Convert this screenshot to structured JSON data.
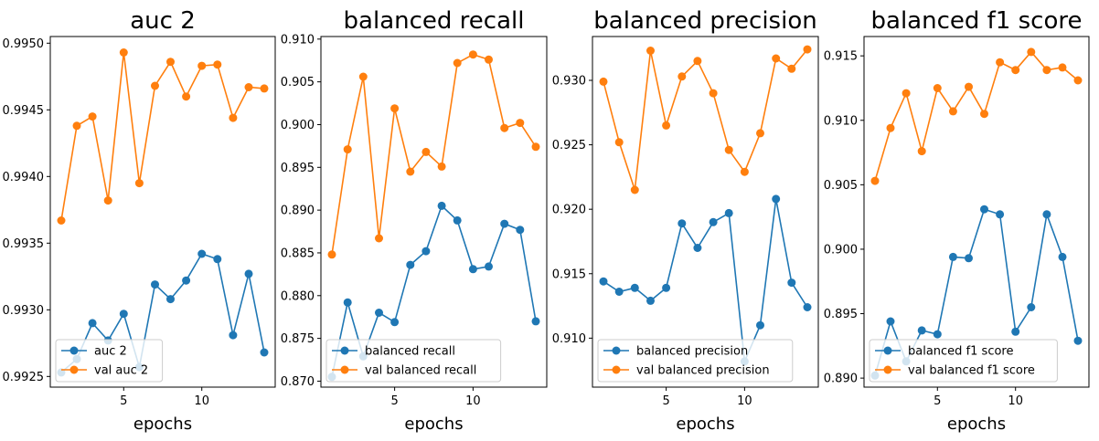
{
  "chart_data": [
    {
      "type": "line",
      "title": "auc 2",
      "xlabel": "epochs",
      "ylabel": "",
      "x": [
        1,
        2,
        3,
        4,
        5,
        6,
        7,
        8,
        9,
        10,
        11,
        12,
        13,
        14
      ],
      "xticks": [
        5,
        10
      ],
      "xlim": [
        0.3,
        14.7
      ],
      "ylim": [
        0.99242,
        0.99505
      ],
      "yticks": [
        0.9925,
        0.993,
        0.9935,
        0.994,
        0.9945,
        0.995
      ],
      "ytick_labels": [
        "0.9925",
        "0.9930",
        "0.9935",
        "0.9940",
        "0.9945",
        "0.9950"
      ],
      "legend_position": "lower-left",
      "series": [
        {
          "name": "auc 2",
          "color": "#1f77b4",
          "values": [
            0.99253,
            0.99263,
            0.9929,
            0.99277,
            0.99297,
            0.99257,
            0.99319,
            0.99308,
            0.99322,
            0.99342,
            0.99338,
            0.99281,
            0.99327,
            0.99268
          ]
        },
        {
          "name": "val auc 2",
          "color": "#ff7f0e",
          "values": [
            0.99367,
            0.99438,
            0.99445,
            0.99382,
            0.99493,
            0.99395,
            0.99468,
            0.99486,
            0.9946,
            0.99483,
            0.99484,
            0.99444,
            0.99467,
            0.99466
          ]
        }
      ]
    },
    {
      "type": "line",
      "title": "balanced recall",
      "xlabel": "epochs",
      "ylabel": "",
      "x": [
        1,
        2,
        3,
        4,
        5,
        6,
        7,
        8,
        9,
        10,
        11,
        12,
        13,
        14
      ],
      "xticks": [
        5,
        10
      ],
      "xlim": [
        0.3,
        14.7
      ],
      "ylim": [
        0.8693,
        0.9103
      ],
      "yticks": [
        0.87,
        0.875,
        0.88,
        0.885,
        0.89,
        0.895,
        0.9,
        0.905,
        0.91
      ],
      "ytick_labels": [
        "0.870",
        "0.875",
        "0.880",
        "0.885",
        "0.890",
        "0.895",
        "0.900",
        "0.905",
        "0.910"
      ],
      "legend_position": "lower-left",
      "series": [
        {
          "name": "balanced recall",
          "color": "#1f77b4",
          "values": [
            0.8705,
            0.8792,
            0.8729,
            0.878,
            0.8769,
            0.8836,
            0.8852,
            0.8905,
            0.8888,
            0.8831,
            0.8834,
            0.8884,
            0.8877,
            0.877
          ]
        },
        {
          "name": "val balanced recall",
          "color": "#ff7f0e",
          "values": [
            0.8848,
            0.8971,
            0.9056,
            0.8867,
            0.9019,
            0.8945,
            0.8968,
            0.8951,
            0.9072,
            0.9082,
            0.9076,
            0.8996,
            0.9002,
            0.8974
          ]
        }
      ]
    },
    {
      "type": "line",
      "title": "balanced precision",
      "xlabel": "epochs",
      "ylabel": "",
      "x": [
        1,
        2,
        3,
        4,
        5,
        6,
        7,
        8,
        9,
        10,
        11,
        12,
        13,
        14
      ],
      "xticks": [
        5,
        10
      ],
      "xlim": [
        0.3,
        14.7
      ],
      "ylim": [
        0.9062,
        0.9334
      ],
      "yticks": [
        0.91,
        0.915,
        0.92,
        0.925,
        0.93
      ],
      "ytick_labels": [
        "0.910",
        "0.915",
        "0.920",
        "0.925",
        "0.930"
      ],
      "legend_position": "lower-left",
      "series": [
        {
          "name": "balanced precision",
          "color": "#1f77b4",
          "values": [
            0.9144,
            0.9136,
            0.9139,
            0.9129,
            0.9139,
            0.9189,
            0.917,
            0.919,
            0.9197,
            0.9082,
            0.911,
            0.9208,
            0.9143,
            0.9124
          ]
        },
        {
          "name": "val balanced precision",
          "color": "#ff7f0e",
          "values": [
            0.9299,
            0.9252,
            0.9215,
            0.9323,
            0.9265,
            0.9303,
            0.9315,
            0.929,
            0.9246,
            0.9229,
            0.9259,
            0.9317,
            0.9309,
            0.9324
          ]
        }
      ]
    },
    {
      "type": "line",
      "title": "balanced f1 score",
      "xlabel": "epochs",
      "ylabel": "",
      "x": [
        1,
        2,
        3,
        4,
        5,
        6,
        7,
        8,
        9,
        10,
        11,
        12,
        13,
        14
      ],
      "xticks": [
        5,
        10
      ],
      "xlim": [
        0.3,
        14.7
      ],
      "ylim": [
        0.8893,
        0.9165
      ],
      "yticks": [
        0.89,
        0.895,
        0.9,
        0.905,
        0.91,
        0.915
      ],
      "ytick_labels": [
        "0.890",
        "0.895",
        "0.900",
        "0.905",
        "0.910",
        "0.915"
      ],
      "legend_position": "lower-left",
      "series": [
        {
          "name": "balanced f1 score",
          "color": "#1f77b4",
          "values": [
            0.8902,
            0.8944,
            0.8913,
            0.8937,
            0.8934,
            0.8994,
            0.8993,
            0.9031,
            0.9027,
            0.8936,
            0.8955,
            0.9027,
            0.8994,
            0.8929
          ]
        },
        {
          "name": "val balanced f1 score",
          "color": "#ff7f0e",
          "values": [
            0.9053,
            0.9094,
            0.9121,
            0.9076,
            0.9125,
            0.9107,
            0.9126,
            0.9105,
            0.9145,
            0.9139,
            0.9153,
            0.9139,
            0.9141,
            0.9131
          ]
        }
      ]
    }
  ]
}
